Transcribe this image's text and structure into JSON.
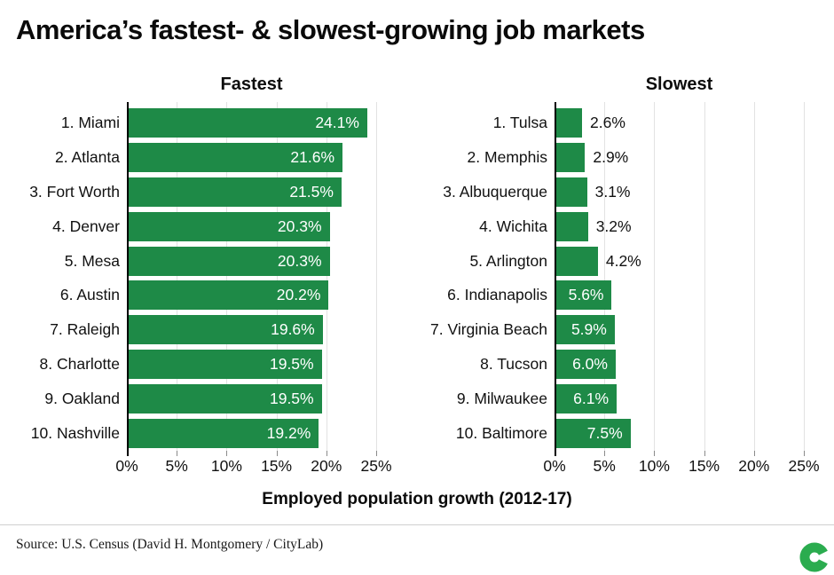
{
  "title": "America’s fastest- & slowest-growing job markets",
  "chart_data": [
    {
      "type": "bar",
      "orientation": "horizontal",
      "title": "Fastest",
      "categories": [
        "1. Miami",
        "2. Atlanta",
        "3. Fort Worth",
        "4. Denver",
        "5. Mesa",
        "6. Austin",
        "7. Raleigh",
        "8. Charlotte",
        "9. Oakland",
        "10. Nashville"
      ],
      "values": [
        24.1,
        21.6,
        21.5,
        20.3,
        20.3,
        20.2,
        19.6,
        19.5,
        19.5,
        19.2
      ],
      "value_labels": [
        "24.1%",
        "21.6%",
        "21.5%",
        "20.3%",
        "20.3%",
        "20.2%",
        "19.6%",
        "19.5%",
        "19.5%",
        "19.2%"
      ],
      "xlim": [
        0,
        25
      ],
      "ticks": [
        "0%",
        "5%",
        "10%",
        "15%",
        "20%",
        "25%"
      ],
      "grid": true,
      "legend": "none"
    },
    {
      "type": "bar",
      "orientation": "horizontal",
      "title": "Slowest",
      "categories": [
        "1. Tulsa",
        "2. Memphis",
        "3. Albuquerque",
        "4. Wichita",
        "5. Arlington",
        "6. Indianapolis",
        "7. Virginia Beach",
        "8. Tucson",
        "9. Milwaukee",
        "10. Baltimore"
      ],
      "values": [
        2.6,
        2.9,
        3.1,
        3.2,
        4.2,
        5.6,
        5.9,
        6.0,
        6.1,
        7.5
      ],
      "value_labels": [
        "2.6%",
        "2.9%",
        "3.1%",
        "3.2%",
        "4.2%",
        "5.6%",
        "5.9%",
        "6.0%",
        "6.1%",
        "7.5%"
      ],
      "xlim": [
        0,
        25
      ],
      "ticks": [
        "0%",
        "5%",
        "10%",
        "15%",
        "20%",
        "25%"
      ],
      "grid": true,
      "legend": "none"
    }
  ],
  "axis": {
    "xlabel": "Employed population growth (2012-17)"
  },
  "footer": {
    "source": "Source: U.S. Census (David H. Montgomery / CityLab)",
    "logo": "citylab-c-logo"
  },
  "colors": {
    "bar": "#1e8a47",
    "logo_green": "#2bac4f",
    "grid": "#e2e2e2",
    "axis": "#000000",
    "value_inside": "#ffffff",
    "value_outside": "#111111"
  }
}
